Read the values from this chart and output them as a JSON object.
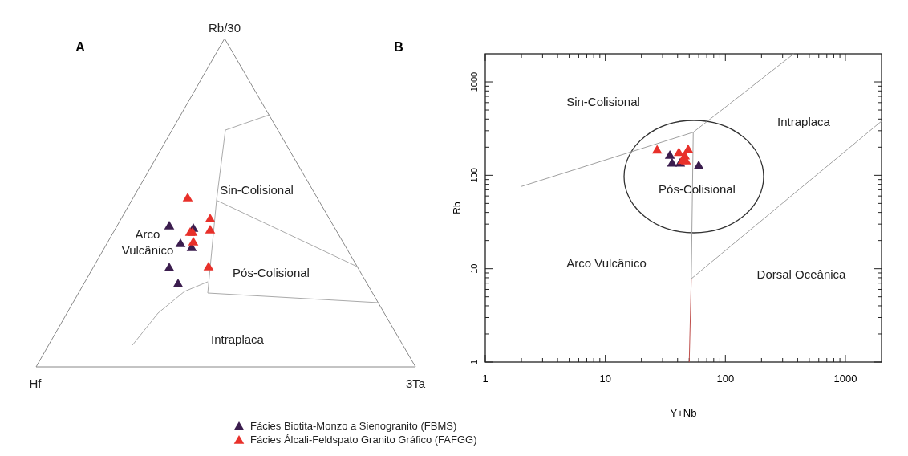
{
  "chart_data": [
    {
      "type": "other",
      "title": "A",
      "annotations": [
        "Rb/30",
        "Hf",
        "3Ta",
        "Sin-Colisional",
        "Pós-Colisional",
        "Arco Vulcânico",
        "Intraplaca"
      ]
    },
    {
      "type": "scatter",
      "title": "B",
      "xlabel": "Y+Nb",
      "ylabel": "Rb",
      "log": "xy",
      "marker": "triangle",
      "legend": "bottom",
      "xlim": [
        1,
        2000
      ],
      "ylim": [
        1,
        2000
      ],
      "xticks": [
        1,
        {
          "value": 2,
          "label": null
        },
        {
          "value": 3,
          "label": null
        },
        {
          "value": 4,
          "label": null
        },
        {
          "value": 5,
          "label": null
        },
        {
          "value": 6,
          "label": null
        },
        {
          "value": 7,
          "label": null
        },
        {
          "value": 8,
          "label": null
        },
        {
          "value": 9,
          "label": null
        },
        10,
        {
          "value": 20,
          "label": null
        },
        {
          "value": 30,
          "label": null
        },
        {
          "value": 40,
          "label": null
        },
        {
          "value": 50,
          "label": null
        },
        {
          "value": 60,
          "label": null
        },
        {
          "value": 70,
          "label": null
        },
        {
          "value": 80,
          "label": null
        },
        {
          "value": 90,
          "label": null
        },
        100,
        {
          "value": 200,
          "label": null
        },
        {
          "value": 300,
          "label": null
        },
        {
          "value": 400,
          "label": null
        },
        {
          "value": 500,
          "label": null
        },
        {
          "value": 600,
          "label": null
        },
        {
          "value": 700,
          "label": null
        },
        {
          "value": 800,
          "label": null
        },
        {
          "value": 900,
          "label": null
        },
        1000
      ],
      "yticks": [
        1,
        {
          "value": 2,
          "label": null
        },
        {
          "value": 3,
          "label": null
        },
        {
          "value": 4,
          "label": null
        },
        {
          "value": 5,
          "label": null
        },
        {
          "value": 6,
          "label": null
        },
        {
          "value": 7,
          "label": null
        },
        {
          "value": 8,
          "label": null
        },
        {
          "value": 9,
          "label": null
        },
        10,
        {
          "value": 20,
          "label": null
        },
        {
          "value": 30,
          "label": null
        },
        {
          "value": 40,
          "label": null
        },
        {
          "value": 50,
          "label": null
        },
        {
          "value": 60,
          "label": null
        },
        {
          "value": 70,
          "label": null
        },
        {
          "value": 80,
          "label": null
        },
        {
          "value": 90,
          "label": null
        },
        100,
        {
          "value": 200,
          "label": null
        },
        {
          "value": 300,
          "label": null
        },
        {
          "value": 400,
          "label": null
        },
        {
          "value": 500,
          "label": null
        },
        {
          "value": 600,
          "label": null
        },
        {
          "value": 700,
          "label": null
        },
        {
          "value": 800,
          "label": null
        },
        {
          "value": 900,
          "label": null
        },
        1000
      ],
      "series": [
        {
          "name": "Fácies Biotita-Monzo a Sienogranito (FBMS)",
          "color": "#3b1d4e",
          "x": [
            34.5,
            36,
            42,
            60
          ],
          "values": [
            165,
            136,
            136,
            128
          ]
        },
        {
          "name": "Fácies Álcali-Feldspato Granito Gráfico (FAFGG)",
          "color": "#e8302a",
          "x": [
            27,
            41,
            49,
            46,
            44,
            47
          ],
          "values": [
            188,
            177,
            191,
            163,
            145,
            144
          ]
        },
        {
          "type": "line",
          "marker": "none",
          "color": "#a0a0a0",
          "x": [
            2,
            54,
            372
          ],
          "values": [
            76,
            289,
            2000
          ]
        },
        {
          "type": "line",
          "marker": "none",
          "color": "#a0a0a0",
          "x": [
            54,
            52
          ],
          "values": [
            289,
            7.8
          ]
        },
        {
          "type": "line",
          "marker": "none",
          "color": "#a0a0a0",
          "x": [
            52,
            2000
          ],
          "values": [
            7.8,
            380
          ]
        },
        {
          "type": "line",
          "marker": "none",
          "color": "#c0504d",
          "x": [
            52,
            50
          ],
          "values": [
            7.8,
            1
          ]
        }
      ],
      "annotations": [
        "Sin-Colisional",
        "Intraplaca",
        "Pós-Colisional",
        "Arco Vulcânico",
        "Dorsal Oceânica"
      ]
    }
  ]
}
